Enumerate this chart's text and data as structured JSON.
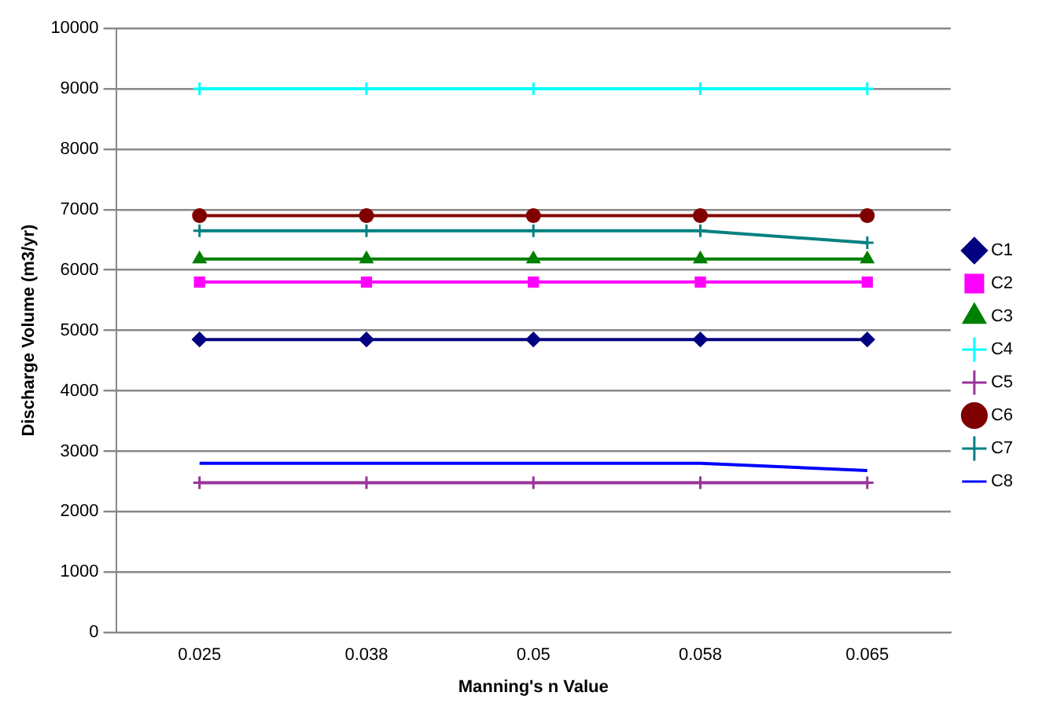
{
  "chart_data": {
    "type": "line",
    "xlabel": "Manning's n Value",
    "ylabel": "Discharge Volume (m3/yr)",
    "categories": [
      "0.025",
      "0.038",
      "0.05",
      "0.058",
      "0.065"
    ],
    "series": [
      {
        "name": "C1",
        "color": "#000080",
        "marker": "diamond",
        "values": [
          4850,
          4850,
          4850,
          4850,
          4850
        ]
      },
      {
        "name": "C2",
        "color": "#ff00ff",
        "marker": "square",
        "values": [
          5800,
          5800,
          5800,
          5800,
          5800
        ]
      },
      {
        "name": "C3",
        "color": "#008000",
        "marker": "triangle",
        "values": [
          6180,
          6180,
          6180,
          6180,
          6180
        ]
      },
      {
        "name": "C4",
        "color": "#00ffff",
        "marker": "cross",
        "values": [
          9000,
          9000,
          9000,
          9000,
          9000
        ]
      },
      {
        "name": "C5",
        "color": "#993399",
        "marker": "cross",
        "values": [
          2480,
          2480,
          2480,
          2480,
          2480
        ]
      },
      {
        "name": "C6",
        "color": "#800000",
        "marker": "circle",
        "values": [
          6900,
          6900,
          6900,
          6900,
          6900
        ]
      },
      {
        "name": "C7",
        "color": "#008080",
        "marker": "cross",
        "values": [
          6650,
          6650,
          6650,
          6650,
          6450
        ]
      },
      {
        "name": "C8",
        "color": "#0000ff",
        "marker": "none",
        "values": [
          2800,
          2800,
          2800,
          2800,
          2680
        ]
      }
    ],
    "ylim": [
      0,
      10000
    ],
    "yticks": [
      0,
      1000,
      2000,
      3000,
      4000,
      5000,
      6000,
      7000,
      8000,
      9000,
      10000
    ],
    "grid": "y",
    "legend": "right"
  }
}
